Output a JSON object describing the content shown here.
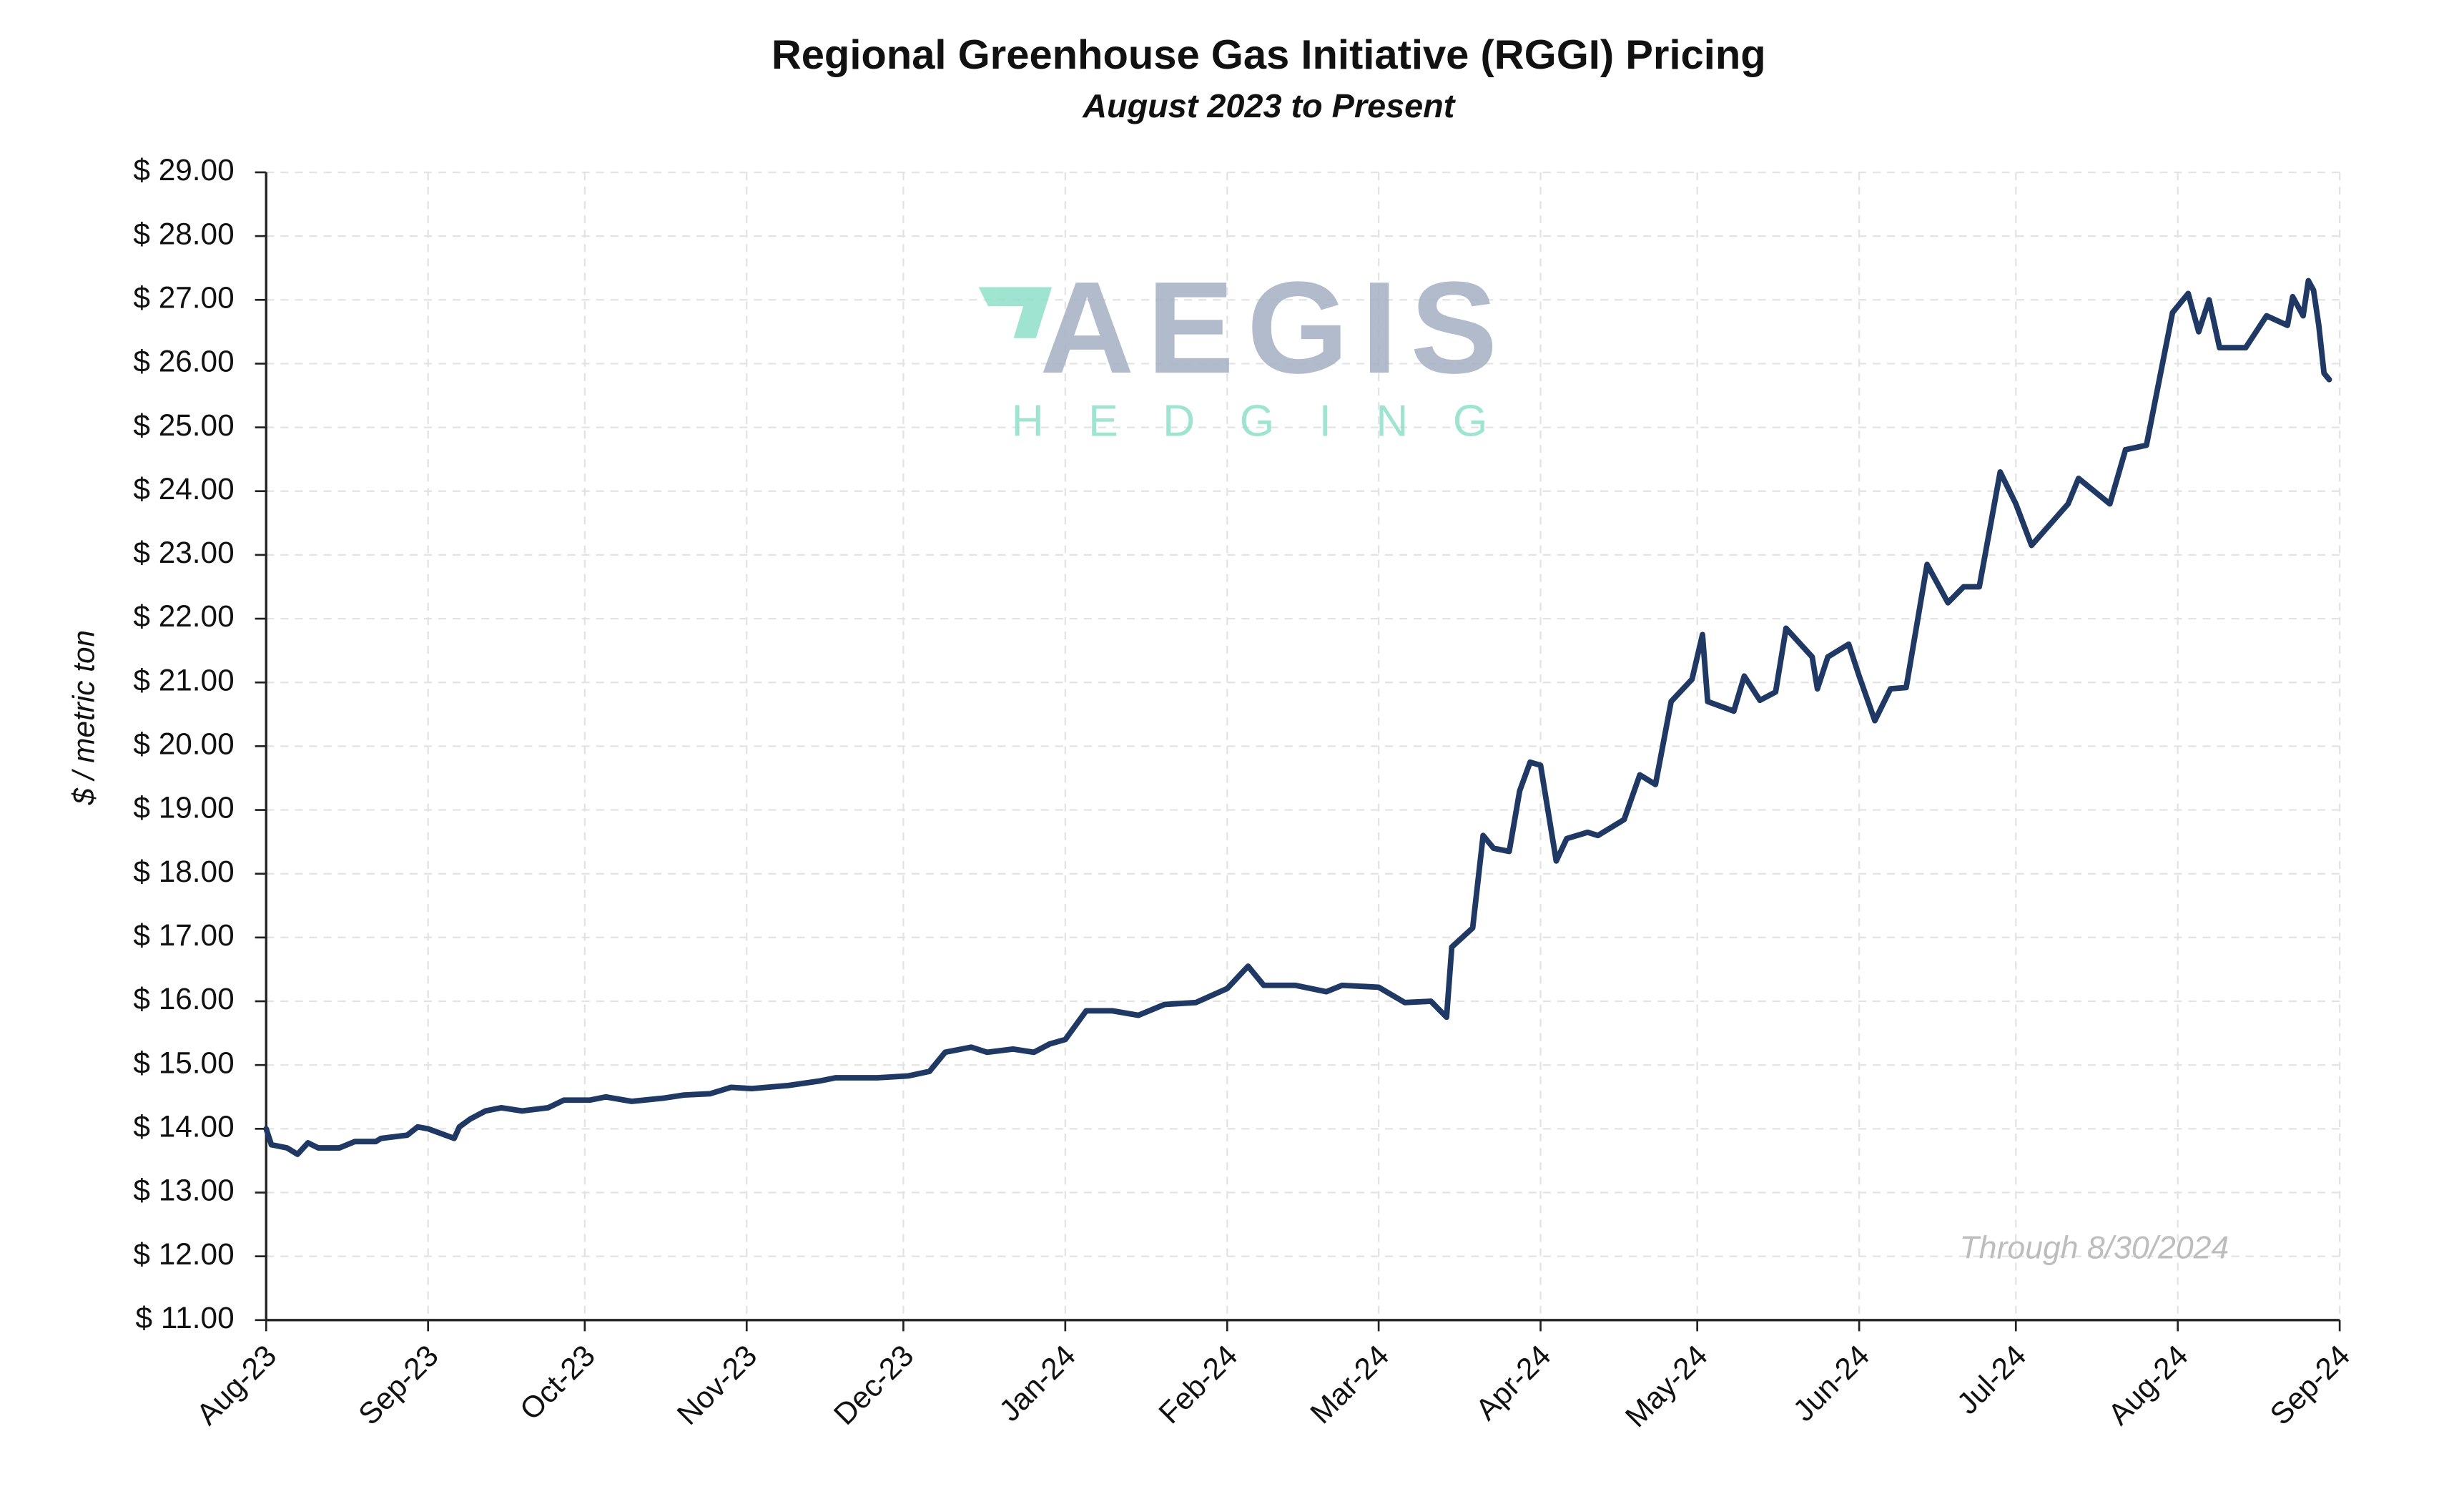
{
  "chart_data": {
    "type": "line",
    "title": "Regional Greenhouse Gas Initiative (RGGI) Pricing",
    "subtitle": "August 2023 to Present",
    "y_label": "$ / metric ton",
    "annotation": "Through 8/30/2024",
    "watermark": {
      "name": "AEGIS",
      "tagline": "HEDGING"
    },
    "grid": true,
    "xlim": [
      "2023-08-01",
      "2024-09-01"
    ],
    "xticks": [
      {
        "value": "2023-08-01",
        "label": "Aug-23"
      },
      {
        "value": "2023-09-01",
        "label": "Sep-23"
      },
      {
        "value": "2023-10-01",
        "label": "Oct-23"
      },
      {
        "value": "2023-11-01",
        "label": "Nov-23"
      },
      {
        "value": "2023-12-01",
        "label": "Dec-23"
      },
      {
        "value": "2024-01-01",
        "label": "Jan-24"
      },
      {
        "value": "2024-02-01",
        "label": "Feb-24"
      },
      {
        "value": "2024-03-01",
        "label": "Mar-24"
      },
      {
        "value": "2024-04-01",
        "label": "Apr-24"
      },
      {
        "value": "2024-05-01",
        "label": "May-24"
      },
      {
        "value": "2024-06-01",
        "label": "Jun-24"
      },
      {
        "value": "2024-07-01",
        "label": "Jul-24"
      },
      {
        "value": "2024-08-01",
        "label": "Aug-24"
      },
      {
        "value": "2024-09-01",
        "label": "Sep-24"
      }
    ],
    "ylim": [
      11,
      29
    ],
    "yticks": [
      {
        "value": 11,
        "label": "$ 11.00"
      },
      {
        "value": 12,
        "label": "$ 12.00"
      },
      {
        "value": 13,
        "label": "$ 13.00"
      },
      {
        "value": 14,
        "label": "$ 14.00"
      },
      {
        "value": 15,
        "label": "$ 15.00"
      },
      {
        "value": 16,
        "label": "$ 16.00"
      },
      {
        "value": 17,
        "label": "$ 17.00"
      },
      {
        "value": 18,
        "label": "$ 18.00"
      },
      {
        "value": 19,
        "label": "$ 19.00"
      },
      {
        "value": 20,
        "label": "$ 20.00"
      },
      {
        "value": 21,
        "label": "$ 21.00"
      },
      {
        "value": 22,
        "label": "$ 22.00"
      },
      {
        "value": 23,
        "label": "$ 23.00"
      },
      {
        "value": 24,
        "label": "$ 24.00"
      },
      {
        "value": 25,
        "label": "$ 25.00"
      },
      {
        "value": 26,
        "label": "$ 26.00"
      },
      {
        "value": 27,
        "label": "$ 27.00"
      },
      {
        "value": 28,
        "label": "$ 28.00"
      },
      {
        "value": 29,
        "label": "$ 29.00"
      }
    ],
    "x": [
      "2023-08-01",
      "2023-08-02",
      "2023-08-05",
      "2023-08-07",
      "2023-08-09",
      "2023-08-11",
      "2023-08-15",
      "2023-08-18",
      "2023-08-22",
      "2023-08-23",
      "2023-08-28",
      "2023-08-30",
      "2023-09-01",
      "2023-09-06",
      "2023-09-07",
      "2023-09-09",
      "2023-09-12",
      "2023-09-15",
      "2023-09-19",
      "2023-09-24",
      "2023-09-27",
      "2023-10-02",
      "2023-10-05",
      "2023-10-10",
      "2023-10-16",
      "2023-10-20",
      "2023-10-25",
      "2023-10-29",
      "2023-11-02",
      "2023-11-09",
      "2023-11-15",
      "2023-11-18",
      "2023-11-26",
      "2023-12-02",
      "2023-12-06",
      "2023-12-09",
      "2023-12-14",
      "2023-12-17",
      "2023-12-22",
      "2023-12-26",
      "2023-12-29",
      "2024-01-01",
      "2024-01-05",
      "2024-01-10",
      "2024-01-15",
      "2024-01-20",
      "2024-01-26",
      "2024-02-01",
      "2024-02-05",
      "2024-02-08",
      "2024-02-14",
      "2024-02-20",
      "2024-02-23",
      "2024-03-01",
      "2024-03-06",
      "2024-03-11",
      "2024-03-14",
      "2024-03-15",
      "2024-03-19",
      "2024-03-21",
      "2024-03-23",
      "2024-03-26",
      "2024-03-28",
      "2024-03-30",
      "2024-04-01",
      "2024-04-04",
      "2024-04-06",
      "2024-04-10",
      "2024-04-12",
      "2024-04-17",
      "2024-04-20",
      "2024-04-23",
      "2024-04-26",
      "2024-04-30",
      "2024-05-02",
      "2024-05-03",
      "2024-05-08",
      "2024-05-10",
      "2024-05-13",
      "2024-05-16",
      "2024-05-18",
      "2024-05-23",
      "2024-05-24",
      "2024-05-26",
      "2024-05-30",
      "2024-06-01",
      "2024-06-04",
      "2024-06-07",
      "2024-06-10",
      "2024-06-14",
      "2024-06-18",
      "2024-06-21",
      "2024-06-24",
      "2024-06-28",
      "2024-07-01",
      "2024-07-04",
      "2024-07-11",
      "2024-07-13",
      "2024-07-19",
      "2024-07-22",
      "2024-07-26",
      "2024-07-31",
      "2024-08-03",
      "2024-08-05",
      "2024-08-07",
      "2024-08-09",
      "2024-08-14",
      "2024-08-18",
      "2024-08-22",
      "2024-08-23",
      "2024-08-25",
      "2024-08-26",
      "2024-08-27",
      "2024-08-28",
      "2024-08-29",
      "2024-08-30"
    ],
    "series": [
      {
        "name": "RGGI",
        "color": "#1f3864",
        "values": [
          14.0,
          13.75,
          13.7,
          13.6,
          13.78,
          13.7,
          13.7,
          13.8,
          13.8,
          13.85,
          13.9,
          14.03,
          14.0,
          13.85,
          14.03,
          14.15,
          14.28,
          14.33,
          14.28,
          14.33,
          14.45,
          14.45,
          14.5,
          14.43,
          14.48,
          14.53,
          14.55,
          14.65,
          14.63,
          14.68,
          14.75,
          14.8,
          14.8,
          14.83,
          14.9,
          15.2,
          15.28,
          15.2,
          15.25,
          15.2,
          15.33,
          15.4,
          15.85,
          15.85,
          15.78,
          15.95,
          15.98,
          16.2,
          16.55,
          16.25,
          16.25,
          16.15,
          16.25,
          16.22,
          15.98,
          16.0,
          15.75,
          16.85,
          17.15,
          18.6,
          18.4,
          18.35,
          19.3,
          19.75,
          19.7,
          18.2,
          18.55,
          18.65,
          18.6,
          18.85,
          19.55,
          19.4,
          20.7,
          21.05,
          21.75,
          20.7,
          20.55,
          21.1,
          20.72,
          20.85,
          21.85,
          21.4,
          20.9,
          21.4,
          21.6,
          21.1,
          20.4,
          20.9,
          20.92,
          22.85,
          22.25,
          22.5,
          22.5,
          24.3,
          23.8,
          23.15,
          23.8,
          24.2,
          23.8,
          24.65,
          24.72,
          26.8,
          27.1,
          26.5,
          27.0,
          26.25,
          26.25,
          26.75,
          26.6,
          27.05,
          26.75,
          27.3,
          27.15,
          26.6,
          25.85,
          25.75
        ]
      }
    ]
  }
}
